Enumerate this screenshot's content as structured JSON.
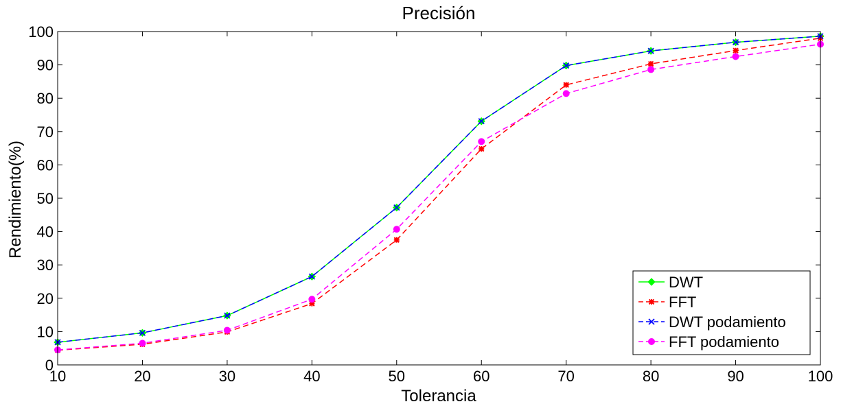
{
  "chart_data": {
    "type": "line",
    "title": "Precisión",
    "xlabel": "Tolerancia",
    "ylabel": "Rendimiento(%)",
    "x": [
      10,
      20,
      30,
      40,
      50,
      60,
      70,
      80,
      90,
      100
    ],
    "xlim": [
      10,
      100
    ],
    "ylim": [
      0,
      100
    ],
    "xticks": [
      10,
      20,
      30,
      40,
      50,
      60,
      70,
      80,
      90,
      100
    ],
    "yticks": [
      0,
      10,
      20,
      30,
      40,
      50,
      60,
      70,
      80,
      90,
      100
    ],
    "grid": false,
    "legend_position": "bottom-right",
    "series": [
      {
        "name": "DWT",
        "values": [
          6.8,
          9.6,
          14.8,
          26.5,
          47.2,
          73.1,
          89.8,
          94.2,
          96.8,
          98.6
        ],
        "color": "#00ff00",
        "dash": "solid",
        "marker": "diamond"
      },
      {
        "name": "FFT",
        "values": [
          4.4,
          6.2,
          9.9,
          18.4,
          37.5,
          64.8,
          84.0,
          90.3,
          94.3,
          98.0
        ],
        "color": "#ff0000",
        "dash": "dashed",
        "marker": "star"
      },
      {
        "name": "DWT podamiento",
        "values": [
          6.8,
          9.6,
          14.8,
          26.5,
          47.2,
          73.1,
          89.8,
          94.2,
          96.8,
          98.6
        ],
        "color": "#0000ff",
        "dash": "dashed",
        "marker": "x"
      },
      {
        "name": "FFT podamiento",
        "values": [
          4.5,
          6.5,
          10.4,
          19.7,
          40.7,
          67.0,
          81.4,
          88.6,
          92.5,
          96.2
        ],
        "color": "#ff00ff",
        "dash": "dashed",
        "marker": "circle"
      }
    ]
  }
}
